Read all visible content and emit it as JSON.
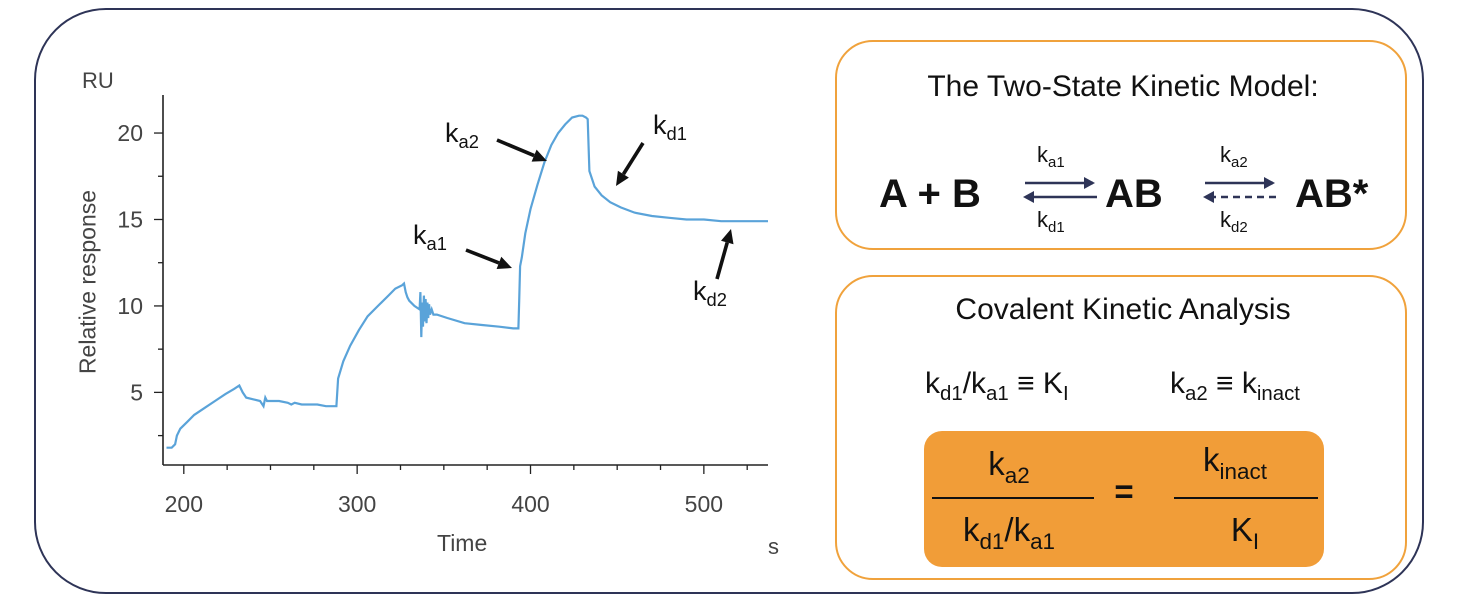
{
  "chart_data": {
    "type": "line",
    "corner_units": {
      "y": "RU",
      "x": "s"
    },
    "xlabel": "Time",
    "ylabel": "Relative response",
    "xlim": [
      188,
      537
    ],
    "ylim": [
      0.8,
      22.2
    ],
    "x_ticks": [
      200,
      300,
      400,
      500
    ],
    "y_ticks": [
      5,
      10,
      15,
      20
    ],
    "x_tick_labels": [
      "200",
      "300",
      "400",
      "500"
    ],
    "y_tick_labels": [
      "5",
      "10",
      "15",
      "20"
    ],
    "grid": false,
    "line_color": "#5aa3d9",
    "series": [
      {
        "x": [
          190,
          193,
          195,
          196,
          198,
          202,
          206,
          212,
          218,
          224,
          229,
          232,
          234,
          236,
          240,
          244,
          246,
          247,
          248,
          251,
          255,
          260,
          262,
          264,
          268,
          272,
          277,
          282,
          287,
          288,
          289,
          292,
          296,
          301,
          306,
          312,
          318,
          322,
          326,
          327,
          328,
          329,
          330,
          333,
          336,
          336.5,
          337,
          337.5,
          338,
          338.5,
          339,
          339.5,
          340,
          340.5,
          341,
          341.5,
          342,
          343,
          344,
          346,
          352,
          362,
          372,
          382,
          390,
          393,
          393.5,
          394,
          395,
          397,
          400,
          404,
          408,
          412,
          416,
          420,
          424,
          428,
          430,
          432,
          433,
          433.5,
          434,
          437,
          441,
          446,
          452,
          460,
          470,
          480,
          490,
          500,
          510,
          520,
          530,
          537
        ],
        "y": [
          1.8,
          1.8,
          2.0,
          2.5,
          2.9,
          3.3,
          3.7,
          4.1,
          4.5,
          4.9,
          5.2,
          5.4,
          5.0,
          4.7,
          4.6,
          4.5,
          4.2,
          4.7,
          4.5,
          4.5,
          4.5,
          4.4,
          4.3,
          4.4,
          4.3,
          4.3,
          4.3,
          4.2,
          4.2,
          4.2,
          5.8,
          6.8,
          7.7,
          8.6,
          9.4,
          10.0,
          10.6,
          11.0,
          11.2,
          11.3,
          10.8,
          10.5,
          10.3,
          10.0,
          9.8,
          10.8,
          8.2,
          10.2,
          8.8,
          10.6,
          9.1,
          10.4,
          9.0,
          10.2,
          9.3,
          10.1,
          9.5,
          9.8,
          9.5,
          9.5,
          9.3,
          9.0,
          8.9,
          8.8,
          8.7,
          8.7,
          10.3,
          12.3,
          12.8,
          14.2,
          15.6,
          17.0,
          18.3,
          19.3,
          20.0,
          20.5,
          20.9,
          21.0,
          21.0,
          20.9,
          20.8,
          19.2,
          17.8,
          16.9,
          16.4,
          16.0,
          15.7,
          15.4,
          15.2,
          15.1,
          15.0,
          15.0,
          14.9,
          14.9,
          14.9,
          14.9
        ]
      }
    ],
    "annotations": [
      {
        "k": "k",
        "sub": "a2"
      },
      {
        "k": "k",
        "sub": "d1"
      },
      {
        "k": "k",
        "sub": "a1"
      },
      {
        "k": "k",
        "sub": "d2"
      }
    ]
  },
  "model": {
    "title": "The Two-State Kinetic Model:",
    "reactants": "A + B",
    "intermediate": "AB",
    "product": "AB*",
    "k": "k",
    "ka1": "a1",
    "kd1": "d1",
    "ka2": "a2",
    "kd2": "d2"
  },
  "analysis": {
    "title": "Covalent Kinetic Analysis",
    "k": "k",
    "slash": "/",
    "equiv": "≡",
    "big_k": "K",
    "sub_d1": "d1",
    "sub_a1": "a1",
    "sub_a2": "a2",
    "sub_I": "I",
    "sub_inact": "inact",
    "equals": "="
  },
  "colors": {
    "border": "#2e3457",
    "box_border": "#f0a23c",
    "box_fill": "#f19d38",
    "line": "#5aa3d9",
    "axis": "#222222",
    "arrow_navy": "#2e3457"
  }
}
